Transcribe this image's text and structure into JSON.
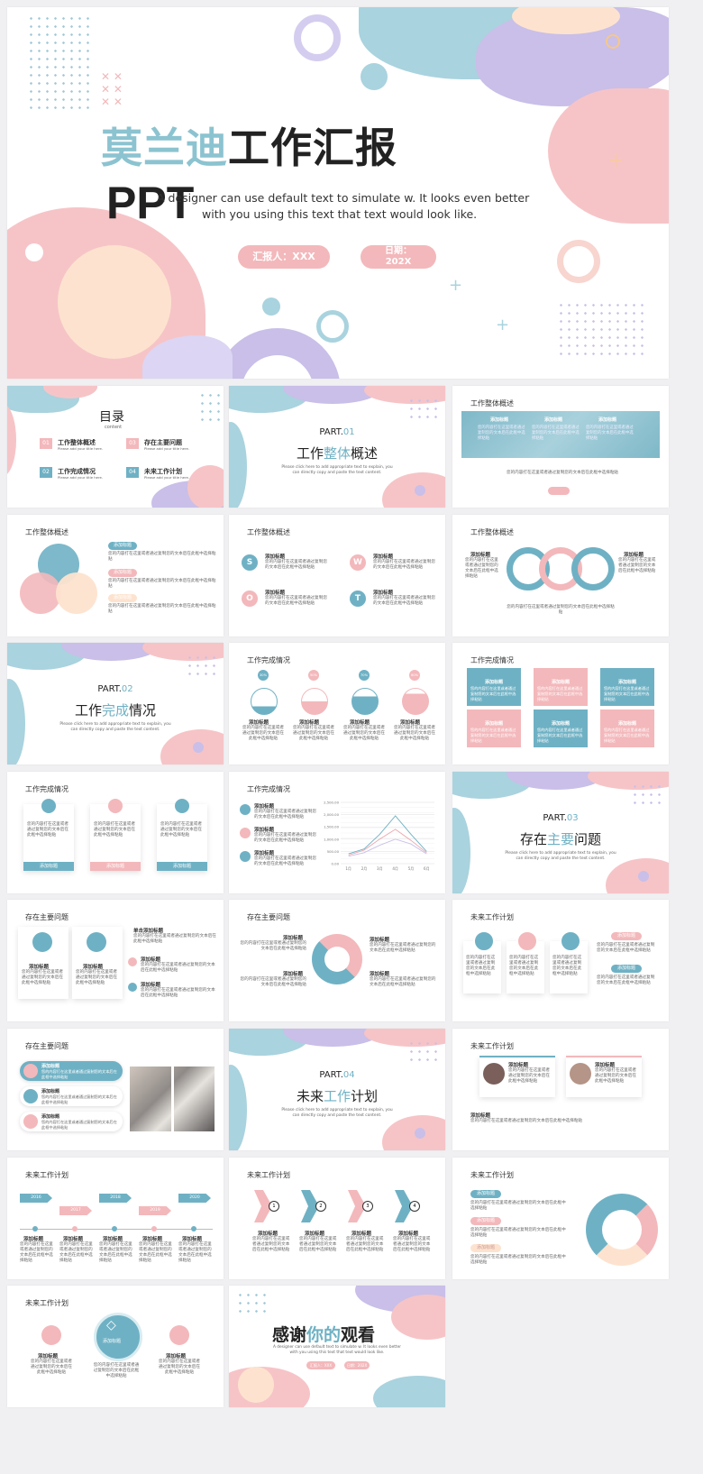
{
  "colors": {
    "blue": "#6fb1c4",
    "pink": "#eaa6ad",
    "lavender": "#c9bfe8",
    "peach": "#fde3cf"
  },
  "cover": {
    "title_a": "莫兰迪",
    "title_b": "工作汇报",
    "ppt": "PPT",
    "subtitle_1": "A designer can use default text to simulate w. It looks even better",
    "subtitle_2": "with you using this text that text would look like.",
    "reporter": "汇报人：XXX",
    "date_1": "日期：",
    "date_2": "202X"
  },
  "toc": {
    "title": "目录",
    "sub": "content",
    "items": [
      {
        "num": "01",
        "label": "工作整体概述",
        "desc": "Please add your title here."
      },
      {
        "num": "02",
        "label": "工作完成情况",
        "desc": "Please add your title here."
      },
      {
        "num": "03",
        "label": "存在主要问题",
        "desc": "Please add your title here."
      },
      {
        "num": "04",
        "label": "未来工作计划",
        "desc": "Please add your title here."
      }
    ]
  },
  "parts": [
    {
      "part": "PART.",
      "num": "01",
      "a": "工作",
      "b": "整体",
      "c": "概述",
      "desc1": "Please click here to add appropriate text to explain, you",
      "desc2": "can directly copy and paste the text content."
    },
    {
      "part": "PART.",
      "num": "02",
      "a": "工作",
      "b": "完成",
      "c": "情况",
      "desc1": "Please click here to add appropriate text to explain, you",
      "desc2": "can directly copy and paste the text content."
    },
    {
      "part": "PART.",
      "num": "03",
      "a": "存在",
      "b": "主要",
      "c": "问题",
      "desc1": "Please click here to add appropriate text to explain, you",
      "desc2": "can directly copy and paste the text content."
    },
    {
      "part": "PART.",
      "num": "04",
      "a": "未来",
      "b": "工作",
      "c": "计划",
      "desc1": "Please click here to add appropriate text to explain, you",
      "desc2": "can directly copy and paste the text content."
    }
  ],
  "headings": {
    "overview": "工作整体概述",
    "done": "工作完成情况",
    "issues": "存在主要问题",
    "plan": "未来工作计划"
  },
  "add_title": "添加标题",
  "add_title2": "单击添加标题",
  "body_text": "您的内容打在这里或者通过复制您的文本后在此框中选择粘贴",
  "swot": [
    "S",
    "W",
    "O",
    "T"
  ],
  "percents": [
    "30%",
    "50%",
    "70%",
    "80%"
  ],
  "chart_data": {
    "type": "line",
    "categories": [
      "1月",
      "2月",
      "3月",
      "4月",
      "5月",
      "6月"
    ],
    "yticks": [
      "0.00",
      "500.00",
      "1,000.00",
      "1,500.00",
      "2,000.00",
      "2,500.00"
    ],
    "ylim": [
      0,
      2500
    ],
    "series": [
      {
        "color": "#6fb1c4",
        "values": [
          400,
          600,
          1200,
          1950,
          1200,
          500
        ]
      },
      {
        "color": "#eaa6ad",
        "values": [
          350,
          550,
          1000,
          1400,
          950,
          450
        ]
      },
      {
        "color": "#c9bfe8",
        "values": [
          300,
          450,
          750,
          1000,
          800,
          400
        ]
      }
    ]
  },
  "timeline": [
    "2016",
    "2017",
    "2018",
    "2019",
    "2020"
  ],
  "steps": [
    "1",
    "2",
    "3",
    "4"
  ],
  "thanks": {
    "a": "感谢",
    "b": "你的",
    "c": "观看",
    "sub1": "A designer can use default text to simulate w. It looks even better",
    "sub2": "with you using this text that text would look like.",
    "reporter": "汇报人：XXX",
    "date": "日期：202X"
  }
}
